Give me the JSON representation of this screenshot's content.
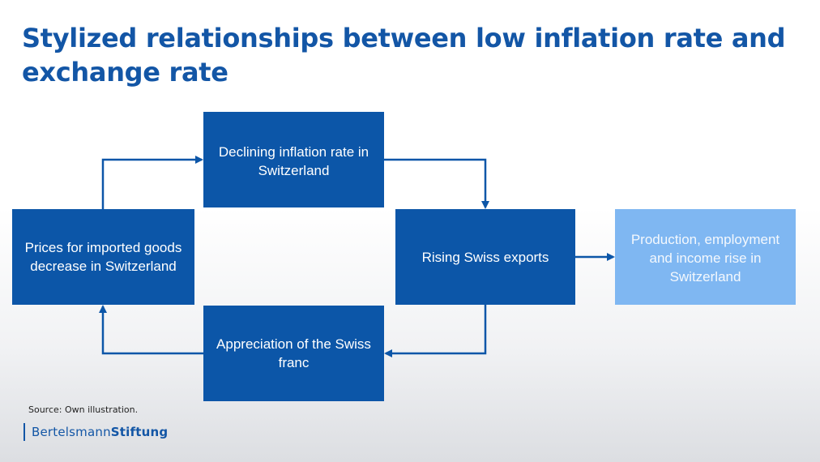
{
  "title": "Stylized relationships between low inflation rate and exchange rate",
  "nodes": {
    "inflation": "Declining inflation rate in Switzerland",
    "prices": "Prices for imported goods decrease in Switzerland",
    "exports": "Rising Swiss exports",
    "production": "Production, employment and income rise in Switzerland",
    "appreciation": "Appreciation of the Swiss franc"
  },
  "edges": [
    {
      "from": "prices",
      "to": "inflation"
    },
    {
      "from": "inflation",
      "to": "exports"
    },
    {
      "from": "exports",
      "to": "production"
    },
    {
      "from": "exports",
      "to": "appreciation"
    },
    {
      "from": "appreciation",
      "to": "prices"
    }
  ],
  "colors": {
    "title": "#1356a6",
    "box_dark": "#0c56a8",
    "box_light": "#7fb7f2",
    "arrow": "#0c56a8"
  },
  "footer": {
    "source": "Source: Own illustration.",
    "logo_regular": "Bertelsmann",
    "logo_bold": "Stiftung"
  }
}
